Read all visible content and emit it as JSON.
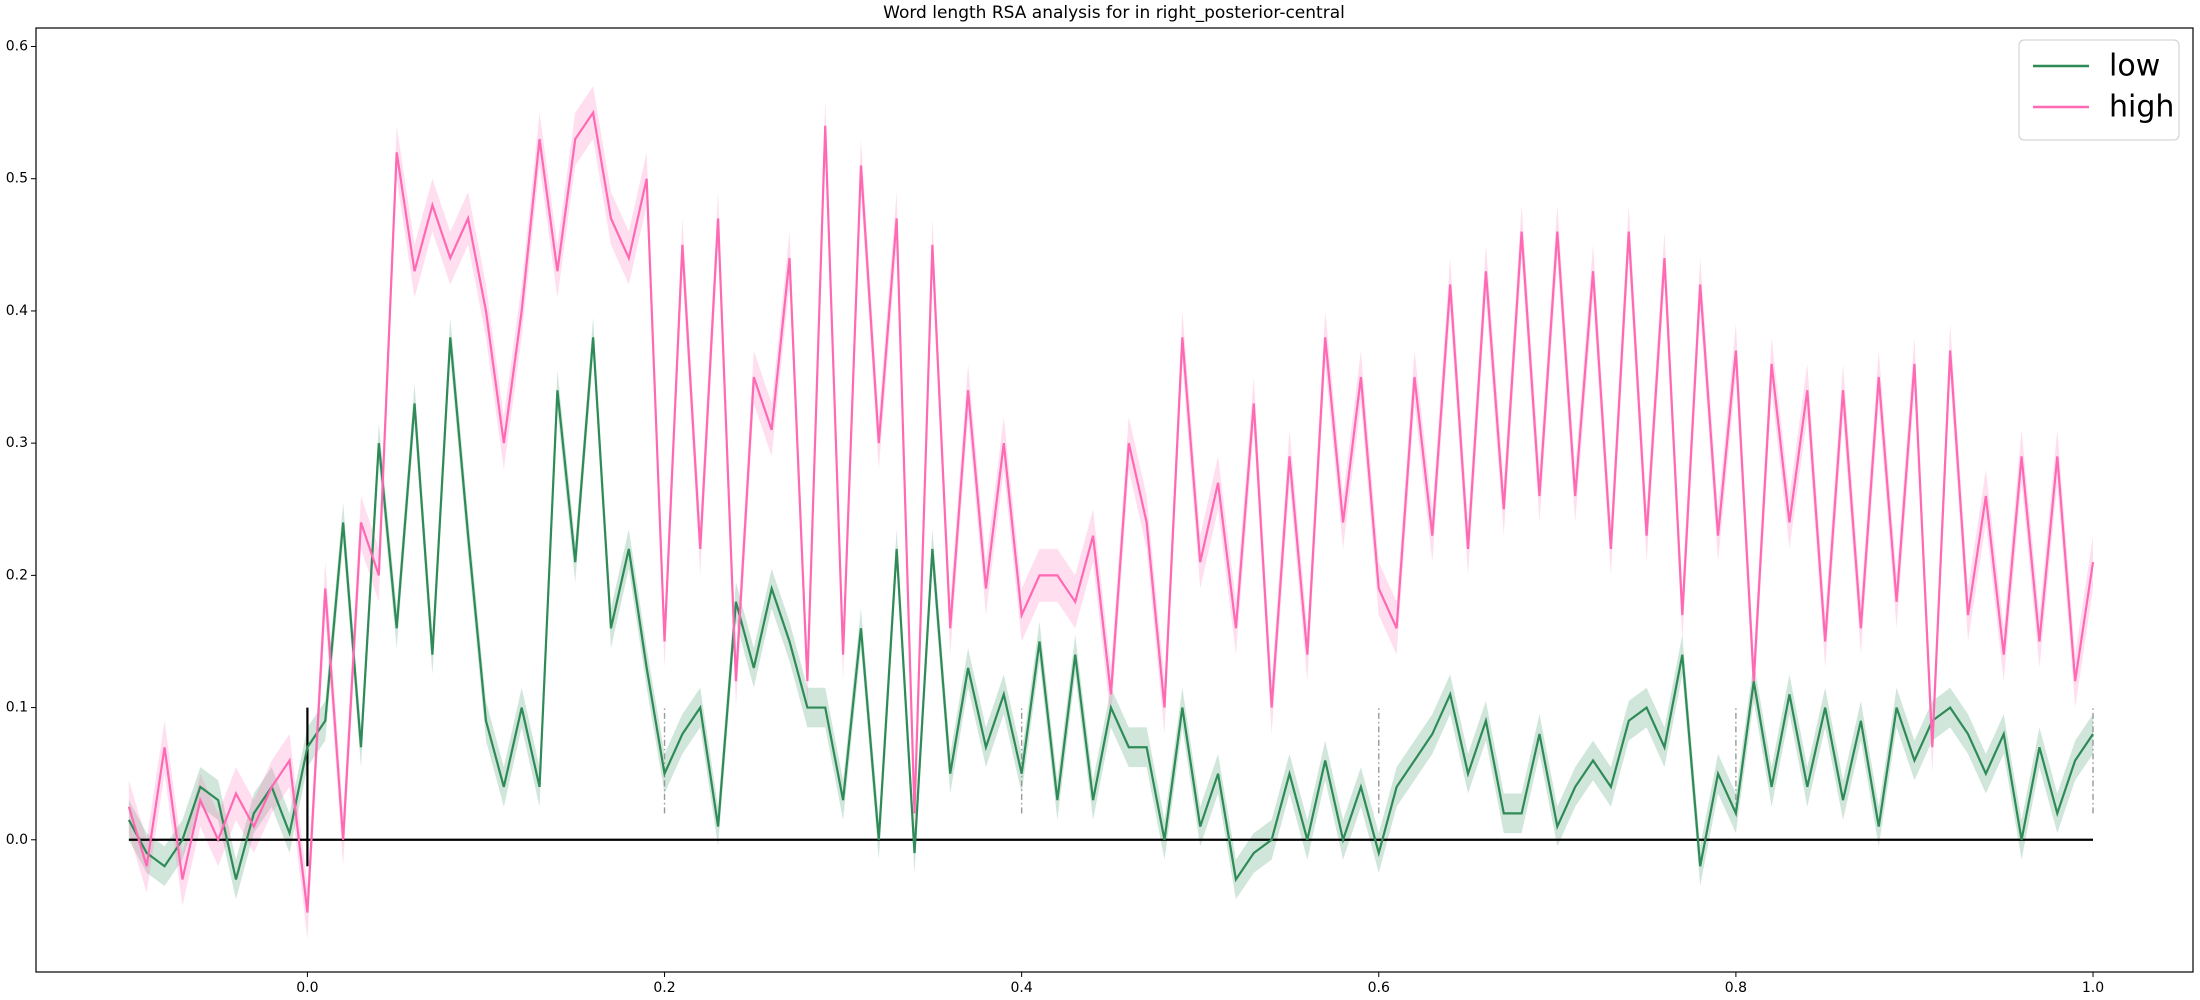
{
  "chart_data": {
    "type": "line",
    "title": "Word length RSA analysis for in right_posterior-central",
    "x": [
      -0.1,
      -0.09,
      -0.08,
      -0.07,
      -0.06,
      -0.05,
      -0.04,
      -0.03,
      -0.02,
      -0.01,
      0,
      0.01,
      0.02,
      0.03,
      0.04,
      0.05,
      0.06,
      0.07,
      0.08,
      0.09,
      0.1,
      0.11,
      0.12,
      0.13,
      0.14,
      0.15,
      0.16,
      0.17,
      0.18,
      0.19,
      0.2,
      0.21,
      0.22,
      0.23,
      0.24,
      0.25,
      0.26,
      0.27,
      0.28,
      0.29,
      0.3,
      0.31,
      0.32,
      0.33,
      0.34,
      0.35,
      0.36,
      0.37,
      0.38,
      0.39,
      0.4,
      0.41,
      0.42,
      0.43,
      0.44,
      0.45,
      0.46,
      0.47,
      0.48,
      0.49,
      0.5,
      0.51,
      0.52,
      0.53,
      0.54,
      0.55,
      0.56,
      0.57,
      0.58,
      0.59,
      0.6,
      0.61,
      0.62,
      0.63,
      0.64,
      0.65,
      0.66,
      0.67,
      0.68,
      0.69,
      0.7,
      0.71,
      0.72,
      0.73,
      0.74,
      0.75,
      0.76,
      0.77,
      0.78,
      0.79,
      0.8,
      0.81,
      0.82,
      0.83,
      0.84,
      0.85,
      0.86,
      0.87,
      0.88,
      0.89,
      0.9,
      0.91,
      0.92,
      0.93,
      0.94,
      0.95,
      0.96,
      0.97,
      0.98,
      0.99,
      1.0
    ],
    "series": [
      {
        "name": "low",
        "color": "#2e8b57",
        "ci": 0.015,
        "values": [
          0.015,
          -0.01,
          -0.02,
          0.0,
          0.04,
          0.03,
          -0.03,
          0.02,
          0.04,
          0.005,
          0.07,
          0.09,
          0.24,
          0.07,
          0.3,
          0.16,
          0.33,
          0.14,
          0.38,
          0.23,
          0.09,
          0.04,
          0.1,
          0.04,
          0.34,
          0.21,
          0.38,
          0.16,
          0.22,
          0.13,
          0.05,
          0.08,
          0.1,
          0.01,
          0.18,
          0.13,
          0.19,
          0.15,
          0.1,
          0.1,
          0.03,
          0.16,
          0.0,
          0.22,
          -0.01,
          0.22,
          0.05,
          0.13,
          0.07,
          0.11,
          0.05,
          0.15,
          0.03,
          0.14,
          0.03,
          0.1,
          0.07,
          0.07,
          0.0,
          0.1,
          0.01,
          0.05,
          -0.03,
          -0.01,
          0.0,
          0.05,
          0.0,
          0.06,
          0.0,
          0.04,
          -0.01,
          0.04,
          0.06,
          0.08,
          0.11,
          0.05,
          0.09,
          0.02,
          0.02,
          0.08,
          0.01,
          0.04,
          0.06,
          0.04,
          0.09,
          0.1,
          0.07,
          0.14,
          -0.02,
          0.05,
          0.02,
          0.12,
          0.04,
          0.11,
          0.04,
          0.1,
          0.03,
          0.09,
          0.01,
          0.1,
          0.06,
          0.09,
          0.1,
          0.08,
          0.05,
          0.08,
          0.0,
          0.07,
          0.02,
          0.06,
          0.08
        ]
      },
      {
        "name": "high",
        "color": "#ff69b4",
        "ci": 0.02,
        "values": [
          0.025,
          -0.02,
          0.07,
          -0.03,
          0.03,
          0.0,
          0.035,
          0.01,
          0.04,
          0.06,
          -0.055,
          0.19,
          0.0,
          0.24,
          0.2,
          0.52,
          0.43,
          0.48,
          0.44,
          0.47,
          0.4,
          0.3,
          0.4,
          0.53,
          0.43,
          0.53,
          0.55,
          0.47,
          0.44,
          0.5,
          0.15,
          0.45,
          0.22,
          0.47,
          0.12,
          0.35,
          0.31,
          0.44,
          0.12,
          0.54,
          0.14,
          0.51,
          0.3,
          0.47,
          0.02,
          0.45,
          0.16,
          0.34,
          0.19,
          0.3,
          0.17,
          0.2,
          0.2,
          0.18,
          0.23,
          0.11,
          0.3,
          0.24,
          0.1,
          0.38,
          0.21,
          0.27,
          0.16,
          0.33,
          0.1,
          0.29,
          0.14,
          0.38,
          0.24,
          0.35,
          0.19,
          0.16,
          0.35,
          0.23,
          0.42,
          0.22,
          0.43,
          0.25,
          0.46,
          0.26,
          0.46,
          0.26,
          0.43,
          0.22,
          0.46,
          0.23,
          0.44,
          0.17,
          0.42,
          0.23,
          0.37,
          0.12,
          0.36,
          0.24,
          0.34,
          0.15,
          0.34,
          0.16,
          0.35,
          0.18,
          0.36,
          0.07,
          0.37,
          0.17,
          0.26,
          0.14,
          0.29,
          0.15,
          0.29,
          0.12,
          0.21
        ]
      }
    ],
    "hline": {
      "y": 0,
      "xmin": -0.1,
      "xmax": 1.0,
      "color": "#000000"
    },
    "vlines": [
      {
        "x": 0,
        "ymin": -0.02,
        "ymax": 0.1,
        "color": "#000000"
      },
      {
        "x": 0.2,
        "ymin": 0.02,
        "ymax": 0.1,
        "color": "#999999"
      },
      {
        "x": 0.4,
        "ymin": 0.02,
        "ymax": 0.1,
        "color": "#999999"
      },
      {
        "x": 0.6,
        "ymin": 0.02,
        "ymax": 0.1,
        "color": "#999999"
      },
      {
        "x": 0.8,
        "ymin": 0.02,
        "ymax": 0.1,
        "color": "#999999"
      },
      {
        "x": 1.0,
        "ymin": 0.02,
        "ymax": 0.1,
        "color": "#999999"
      }
    ],
    "xlim": [
      -0.152,
      1.056
    ],
    "ylim": [
      -0.1,
      0.614
    ],
    "xticks": [
      {
        "value": 0,
        "label": "0.0"
      },
      0.2,
      0.4,
      0.6,
      0.8,
      {
        "value": 1,
        "label": "1.0"
      }
    ],
    "yticks": [
      {
        "value": 0,
        "label": "0.0"
      },
      0.1,
      0.2,
      0.3,
      0.4,
      0.5,
      0.6
    ],
    "legend": "upper right"
  }
}
